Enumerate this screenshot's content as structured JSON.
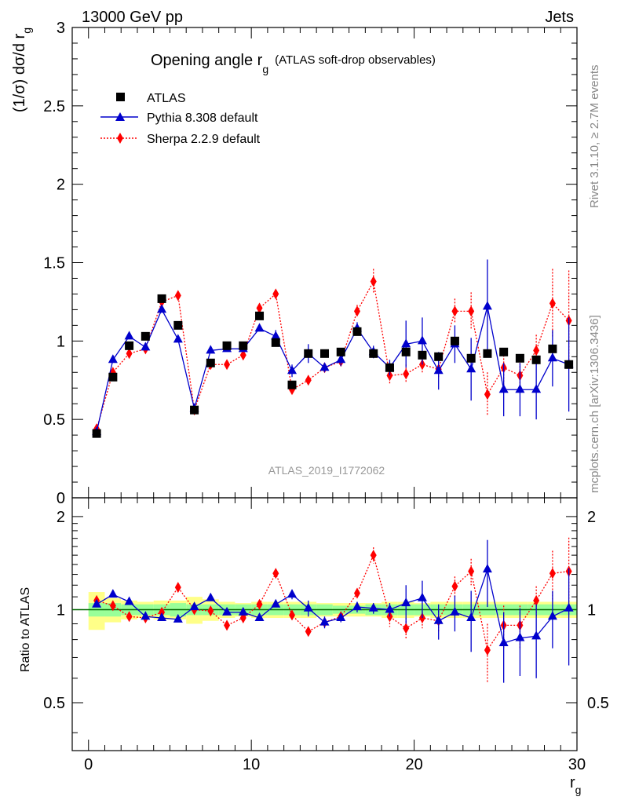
{
  "header": {
    "energy_label": "13000 GeV pp",
    "category_label": "Jets"
  },
  "side_labels": {
    "rivet": "Rivet 3.1.10, ≥ 2.7M events",
    "mcplots": "mcplots.cern.ch [arXiv:1306.3436]"
  },
  "chart_data": [
    {
      "type": "scatter",
      "title": "Opening angle r",
      "title_subscript": "g",
      "subtitle": "(ATLAS soft-drop observables)",
      "ylabel": "(1/σ) dσ/d r",
      "ylabel_subscript": "g",
      "xlabel": "r",
      "xlabel_subscript": "g",
      "watermark": "ATLAS_2019_I1772062",
      "xlim": [
        -1,
        30
      ],
      "ylim": [
        0,
        3
      ],
      "x_ticks": [
        "0",
        "10",
        "20",
        "30"
      ],
      "y_ticks": [
        "0",
        "0.5",
        "1",
        "1.5",
        "2",
        "2.5",
        "3"
      ],
      "legend_position": "top-left",
      "x": [
        0.5,
        1.5,
        2.5,
        3.5,
        4.5,
        5.5,
        6.5,
        7.5,
        8.5,
        9.5,
        10.5,
        11.5,
        12.5,
        13.5,
        14.5,
        15.5,
        16.5,
        17.5,
        18.5,
        19.5,
        20.5,
        21.5,
        22.5,
        23.5,
        24.5,
        25.5,
        26.5,
        27.5,
        28.5,
        29.5
      ],
      "series": [
        {
          "name": "ATLAS",
          "marker": "square",
          "color": "#000000",
          "values": [
            0.41,
            0.77,
            0.97,
            1.03,
            1.27,
            1.1,
            0.56,
            0.86,
            0.97,
            0.97,
            1.16,
            0.99,
            0.72,
            0.92,
            0.92,
            0.93,
            1.06,
            0.92,
            0.83,
            0.93,
            0.91,
            0.9,
            1.0,
            0.89,
            0.92,
            0.93,
            0.89,
            0.88,
            0.95,
            0.85
          ]
        },
        {
          "name": "Pythia 8.308 default",
          "marker": "triangle",
          "line": "solid",
          "color": "#0000cc",
          "values": [
            0.42,
            0.88,
            1.03,
            0.96,
            1.2,
            1.01,
            0.57,
            0.94,
            0.95,
            0.95,
            1.08,
            1.03,
            0.81,
            0.92,
            0.83,
            0.88,
            1.08,
            0.93,
            0.83,
            0.98,
            1.0,
            0.81,
            0.98,
            0.82,
            1.22,
            0.69,
            0.69,
            0.69,
            0.89,
            0.85
          ],
          "errors": [
            0,
            0,
            0,
            0,
            0,
            0,
            0,
            0,
            0,
            0,
            0,
            0.04,
            0.04,
            0.06,
            0.03,
            0.04,
            0.04,
            0.04,
            0.05,
            0.15,
            0.15,
            0.12,
            0.12,
            0.2,
            0.3,
            0.17,
            0.17,
            0.19,
            0.18,
            0.3
          ]
        },
        {
          "name": "Sherpa 2.2.9 default",
          "marker": "diamond",
          "line": "dotted",
          "color": "#ff0000",
          "values": [
            0.44,
            0.8,
            0.92,
            0.95,
            1.25,
            1.29,
            0.56,
            0.85,
            0.85,
            0.91,
            1.21,
            1.3,
            0.69,
            0.75,
            0.83,
            0.87,
            1.19,
            1.38,
            0.78,
            0.79,
            0.85,
            0.82,
            1.19,
            1.19,
            0.66,
            0.83,
            0.78,
            0.94,
            1.24,
            1.13
          ],
          "errors": [
            0,
            0,
            0,
            0,
            0,
            0,
            0,
            0,
            0,
            0,
            0,
            0.02,
            0.02,
            0.03,
            0.03,
            0.03,
            0.04,
            0.08,
            0.06,
            0.06,
            0.06,
            0.06,
            0.08,
            0.12,
            0.14,
            0.12,
            0.12,
            0.1,
            0.22,
            0.32
          ]
        }
      ]
    },
    {
      "type": "scatter",
      "ylabel": "Ratio to ATLAS",
      "xlim": [
        -1,
        30
      ],
      "ylim": [
        0.35,
        2.3
      ],
      "y_ticks": [
        "0.5",
        "1",
        "2"
      ],
      "reference_line": 1,
      "band_colors": {
        "inner": "#99ff99",
        "outer": "#ffff88"
      },
      "band_inner": [
        0.05,
        0.05,
        0.04,
        0.04,
        0.04,
        0.05,
        0.04,
        0.04,
        0.04,
        0.04,
        0.04,
        0.04,
        0.04,
        0.04,
        0.04,
        0.03,
        0.03,
        0.04,
        0.04,
        0.04,
        0.04,
        0.04,
        0.04,
        0.04,
        0.04,
        0.04,
        0.04,
        0.04,
        0.04,
        0.04
      ],
      "band_outer": [
        0.14,
        0.09,
        0.07,
        0.06,
        0.07,
        0.07,
        0.1,
        0.08,
        0.06,
        0.05,
        0.06,
        0.06,
        0.06,
        0.06,
        0.05,
        0.05,
        0.05,
        0.05,
        0.06,
        0.06,
        0.05,
        0.06,
        0.06,
        0.06,
        0.06,
        0.06,
        0.06,
        0.06,
        0.06,
        0.06
      ],
      "series": [
        {
          "name": "Pythia 8.308 default",
          "color": "#0000cc",
          "values": [
            1.04,
            1.12,
            1.06,
            0.95,
            0.94,
            0.93,
            1.02,
            1.09,
            0.98,
            0.98,
            0.94,
            1.04,
            1.12,
            1.01,
            0.91,
            0.94,
            1.02,
            1.01,
            1.0,
            1.05,
            1.09,
            0.92,
            0.98,
            0.94,
            1.35,
            0.78,
            0.81,
            0.82,
            0.95,
            1.01
          ],
          "errors": [
            0,
            0,
            0,
            0,
            0,
            0,
            0,
            0,
            0,
            0,
            0,
            0.02,
            0.04,
            0.06,
            0.04,
            0.03,
            0.04,
            0.04,
            0.05,
            0.15,
            0.15,
            0.12,
            0.13,
            0.21,
            0.33,
            0.2,
            0.2,
            0.22,
            0.2,
            0.35
          ]
        },
        {
          "name": "Sherpa 2.2.9 default",
          "color": "#ff0000",
          "values": [
            1.07,
            1.03,
            0.95,
            0.94,
            0.98,
            1.18,
            1.0,
            0.99,
            0.89,
            0.94,
            1.04,
            1.31,
            0.96,
            0.85,
            0.91,
            0.95,
            1.13,
            1.5,
            0.95,
            0.87,
            0.94,
            0.92,
            1.19,
            1.33,
            0.74,
            0.89,
            0.89,
            1.07,
            1.31,
            1.33
          ],
          "errors": [
            0,
            0,
            0,
            0,
            0,
            0,
            0,
            0,
            0,
            0,
            0,
            0.02,
            0.03,
            0.03,
            0.03,
            0.03,
            0.04,
            0.09,
            0.07,
            0.07,
            0.07,
            0.07,
            0.09,
            0.13,
            0.16,
            0.14,
            0.14,
            0.12,
            0.24,
            0.38
          ]
        }
      ]
    }
  ]
}
